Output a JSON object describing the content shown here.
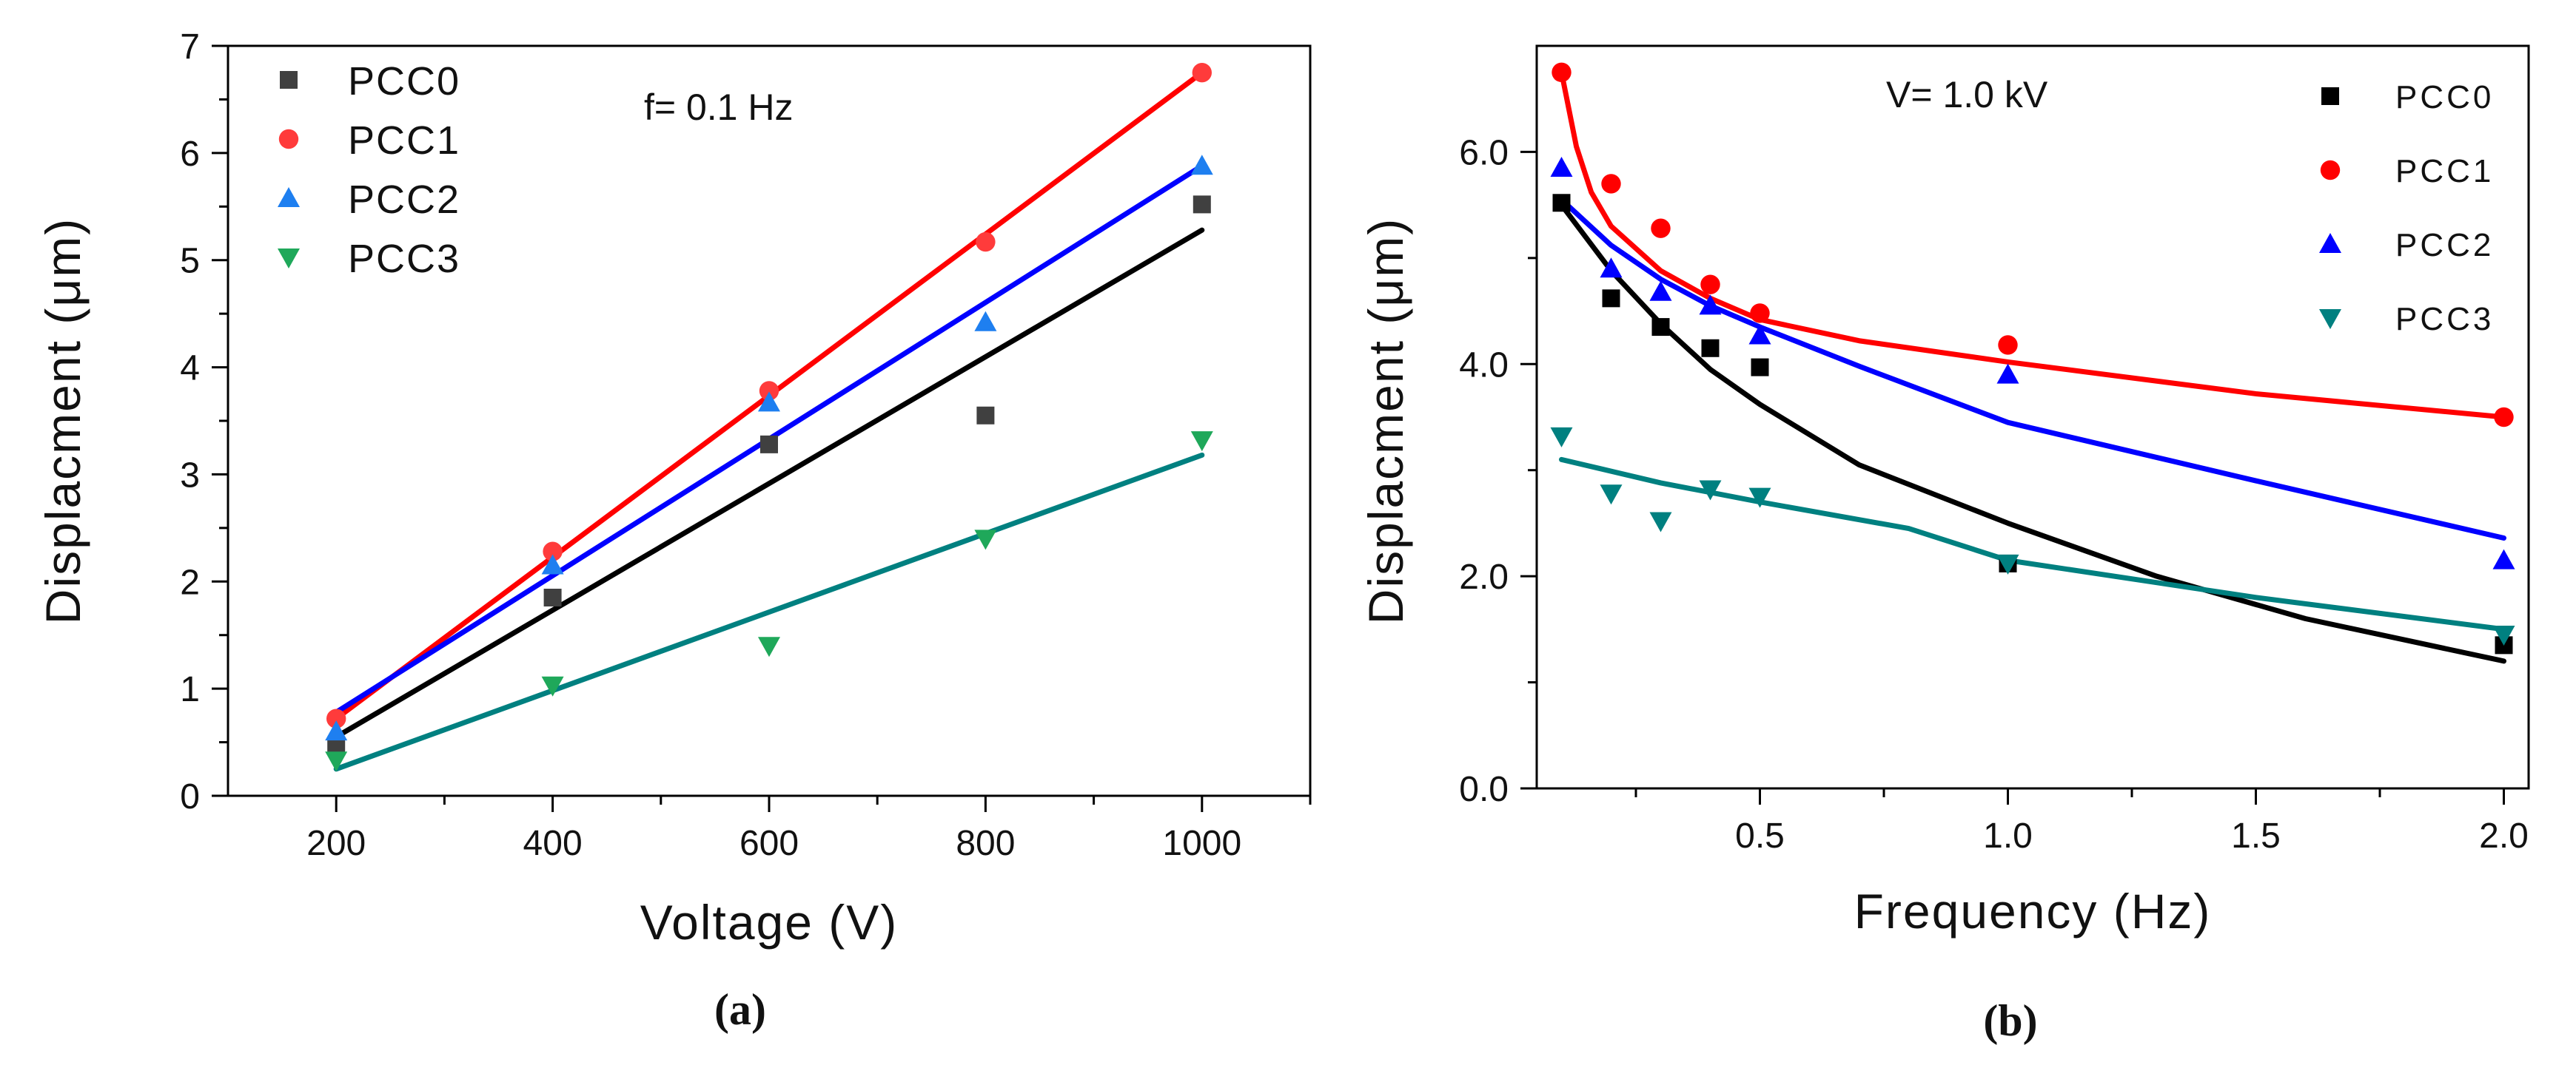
{
  "chart_data": [
    {
      "type": "scatter",
      "panel_label": "(a)",
      "annotation": "f= 0.1 Hz",
      "xlabel": "Voltage (V)",
      "ylabel": "Displacment (μm)",
      "xlim": [
        100,
        1100
      ],
      "ylim": [
        0,
        7
      ],
      "xticks": [
        200,
        400,
        600,
        800,
        1000
      ],
      "xtick_labels": [
        "200",
        "400",
        "600",
        "800",
        "1000"
      ],
      "yticks": [
        0,
        1,
        2,
        3,
        4,
        5,
        6,
        7
      ],
      "ytick_labels": [
        "0",
        "1",
        "2",
        "3",
        "4",
        "5",
        "6",
        "7"
      ],
      "legend_position": "top-left",
      "series": [
        {
          "name": "PCC0",
          "marker": "square",
          "color": "#404040",
          "line_color": "#000000",
          "x": [
            200,
            400,
            600,
            800,
            1000
          ],
          "y": [
            0.47,
            1.85,
            3.28,
            3.55,
            5.52
          ],
          "fit_x": [
            200,
            1000
          ],
          "fit_y": [
            0.55,
            5.28
          ]
        },
        {
          "name": "PCC1",
          "marker": "circle",
          "color": "#ff3b3b",
          "line_color": "#ff0000",
          "x": [
            200,
            400,
            600,
            800,
            1000
          ],
          "y": [
            0.72,
            2.28,
            3.78,
            5.17,
            6.75
          ],
          "fit_x": [
            200,
            1000
          ],
          "fit_y": [
            0.72,
            6.75
          ]
        },
        {
          "name": "PCC2",
          "marker": "triangle-up",
          "color": "#1e7ff0",
          "line_color": "#0000ff",
          "x": [
            200,
            400,
            600,
            800,
            1000
          ],
          "y": [
            0.6,
            2.15,
            3.67,
            4.42,
            5.88
          ],
          "fit_x": [
            200,
            1000
          ],
          "fit_y": [
            0.78,
            5.88
          ]
        },
        {
          "name": "PCC3",
          "marker": "triangle-down",
          "color": "#1fa85a",
          "line_color": "#008080",
          "x": [
            200,
            400,
            600,
            800,
            1000
          ],
          "y": [
            0.33,
            1.03,
            1.4,
            2.4,
            3.32
          ],
          "fit_x": [
            200,
            1000
          ],
          "fit_y": [
            0.25,
            3.18
          ]
        }
      ]
    },
    {
      "type": "scatter",
      "panel_label": "(b)",
      "annotation": "V= 1.0 kV",
      "xlabel": "Frequency (Hz)",
      "ylabel": "Displacment (μm)",
      "xlim": [
        0.05,
        2.05
      ],
      "ylim": [
        0,
        7
      ],
      "xticks": [
        0.5,
        1.0,
        1.5,
        2.0
      ],
      "xtick_labels": [
        "0.5",
        "1.0",
        "1.5",
        "2.0"
      ],
      "yticks": [
        0,
        2,
        4,
        6
      ],
      "ytick_labels": [
        "0.0",
        "2.0",
        "4.0",
        "6.0"
      ],
      "legend_position": "top-right",
      "series": [
        {
          "name": "PCC0",
          "marker": "square",
          "color": "#000000",
          "line_color": "#000000",
          "x": [
            0.1,
            0.2,
            0.3,
            0.4,
            0.5,
            1.0,
            2.0
          ],
          "y": [
            5.52,
            4.62,
            4.35,
            4.15,
            3.97,
            2.12,
            1.35
          ],
          "fit_x": [
            0.1,
            0.2,
            0.3,
            0.4,
            0.5,
            0.7,
            1.0,
            1.3,
            1.6,
            2.0
          ],
          "fit_y": [
            5.5,
            4.88,
            4.38,
            3.95,
            3.62,
            3.05,
            2.5,
            2.0,
            1.6,
            1.2
          ]
        },
        {
          "name": "PCC1",
          "marker": "circle",
          "color": "#ff0000",
          "line_color": "#ff0000",
          "x": [
            0.1,
            0.2,
            0.3,
            0.4,
            0.5,
            1.0,
            2.0
          ],
          "y": [
            6.75,
            5.7,
            5.28,
            4.75,
            4.48,
            4.18,
            3.5
          ],
          "fit_x": [
            0.1,
            0.13,
            0.16,
            0.2,
            0.3,
            0.4,
            0.5,
            0.7,
            1.0,
            1.5,
            2.0
          ],
          "fit_y": [
            6.75,
            6.05,
            5.62,
            5.3,
            4.88,
            4.62,
            4.42,
            4.22,
            4.02,
            3.72,
            3.5
          ]
        },
        {
          "name": "PCC2",
          "marker": "triangle-up",
          "color": "#0000ff",
          "line_color": "#0000ff",
          "x": [
            0.1,
            0.2,
            0.3,
            0.4,
            0.5,
            1.0,
            2.0
          ],
          "y": [
            5.85,
            4.9,
            4.68,
            4.55,
            4.27,
            3.9,
            2.15
          ],
          "fit_x": [
            0.1,
            0.2,
            0.3,
            0.4,
            0.5,
            0.7,
            1.0,
            1.5,
            2.0
          ],
          "fit_y": [
            5.55,
            5.12,
            4.8,
            4.55,
            4.35,
            3.98,
            3.45,
            2.9,
            2.36
          ]
        },
        {
          "name": "PCC3",
          "marker": "triangle-down",
          "color": "#008080",
          "line_color": "#008080",
          "x": [
            0.1,
            0.2,
            0.3,
            0.4,
            0.5,
            1.0,
            2.0
          ],
          "y": [
            3.32,
            2.78,
            2.52,
            2.82,
            2.75,
            2.12,
            1.45
          ],
          "fit_x": [
            0.1,
            0.3,
            0.5,
            0.8,
            1.0,
            1.5,
            2.0
          ],
          "fit_y": [
            3.1,
            2.88,
            2.7,
            2.45,
            2.15,
            1.8,
            1.5
          ]
        }
      ]
    }
  ]
}
